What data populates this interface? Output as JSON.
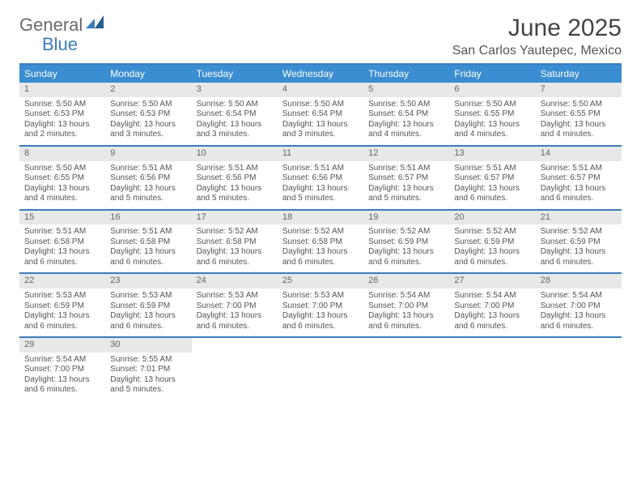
{
  "logo": {
    "general": "General",
    "blue": "Blue"
  },
  "title": {
    "month": "June 2025",
    "location": "San Carlos Yautepec, Mexico"
  },
  "colors": {
    "header_bg": "#3a8dd0",
    "rule": "#3a7dbf",
    "daynum_bg": "#e8e8e8",
    "text": "#555555"
  },
  "day_names": [
    "Sunday",
    "Monday",
    "Tuesday",
    "Wednesday",
    "Thursday",
    "Friday",
    "Saturday"
  ],
  "weeks": [
    [
      {
        "n": "1",
        "sr": "Sunrise: 5:50 AM",
        "ss": "Sunset: 6:53 PM",
        "dl": "Daylight: 13 hours and 2 minutes."
      },
      {
        "n": "2",
        "sr": "Sunrise: 5:50 AM",
        "ss": "Sunset: 6:53 PM",
        "dl": "Daylight: 13 hours and 3 minutes."
      },
      {
        "n": "3",
        "sr": "Sunrise: 5:50 AM",
        "ss": "Sunset: 6:54 PM",
        "dl": "Daylight: 13 hours and 3 minutes."
      },
      {
        "n": "4",
        "sr": "Sunrise: 5:50 AM",
        "ss": "Sunset: 6:54 PM",
        "dl": "Daylight: 13 hours and 3 minutes."
      },
      {
        "n": "5",
        "sr": "Sunrise: 5:50 AM",
        "ss": "Sunset: 6:54 PM",
        "dl": "Daylight: 13 hours and 4 minutes."
      },
      {
        "n": "6",
        "sr": "Sunrise: 5:50 AM",
        "ss": "Sunset: 6:55 PM",
        "dl": "Daylight: 13 hours and 4 minutes."
      },
      {
        "n": "7",
        "sr": "Sunrise: 5:50 AM",
        "ss": "Sunset: 6:55 PM",
        "dl": "Daylight: 13 hours and 4 minutes."
      }
    ],
    [
      {
        "n": "8",
        "sr": "Sunrise: 5:50 AM",
        "ss": "Sunset: 6:55 PM",
        "dl": "Daylight: 13 hours and 4 minutes."
      },
      {
        "n": "9",
        "sr": "Sunrise: 5:51 AM",
        "ss": "Sunset: 6:56 PM",
        "dl": "Daylight: 13 hours and 5 minutes."
      },
      {
        "n": "10",
        "sr": "Sunrise: 5:51 AM",
        "ss": "Sunset: 6:56 PM",
        "dl": "Daylight: 13 hours and 5 minutes."
      },
      {
        "n": "11",
        "sr": "Sunrise: 5:51 AM",
        "ss": "Sunset: 6:56 PM",
        "dl": "Daylight: 13 hours and 5 minutes."
      },
      {
        "n": "12",
        "sr": "Sunrise: 5:51 AM",
        "ss": "Sunset: 6:57 PM",
        "dl": "Daylight: 13 hours and 5 minutes."
      },
      {
        "n": "13",
        "sr": "Sunrise: 5:51 AM",
        "ss": "Sunset: 6:57 PM",
        "dl": "Daylight: 13 hours and 6 minutes."
      },
      {
        "n": "14",
        "sr": "Sunrise: 5:51 AM",
        "ss": "Sunset: 6:57 PM",
        "dl": "Daylight: 13 hours and 6 minutes."
      }
    ],
    [
      {
        "n": "15",
        "sr": "Sunrise: 5:51 AM",
        "ss": "Sunset: 6:58 PM",
        "dl": "Daylight: 13 hours and 6 minutes."
      },
      {
        "n": "16",
        "sr": "Sunrise: 5:51 AM",
        "ss": "Sunset: 6:58 PM",
        "dl": "Daylight: 13 hours and 6 minutes."
      },
      {
        "n": "17",
        "sr": "Sunrise: 5:52 AM",
        "ss": "Sunset: 6:58 PM",
        "dl": "Daylight: 13 hours and 6 minutes."
      },
      {
        "n": "18",
        "sr": "Sunrise: 5:52 AM",
        "ss": "Sunset: 6:58 PM",
        "dl": "Daylight: 13 hours and 6 minutes."
      },
      {
        "n": "19",
        "sr": "Sunrise: 5:52 AM",
        "ss": "Sunset: 6:59 PM",
        "dl": "Daylight: 13 hours and 6 minutes."
      },
      {
        "n": "20",
        "sr": "Sunrise: 5:52 AM",
        "ss": "Sunset: 6:59 PM",
        "dl": "Daylight: 13 hours and 6 minutes."
      },
      {
        "n": "21",
        "sr": "Sunrise: 5:52 AM",
        "ss": "Sunset: 6:59 PM",
        "dl": "Daylight: 13 hours and 6 minutes."
      }
    ],
    [
      {
        "n": "22",
        "sr": "Sunrise: 5:53 AM",
        "ss": "Sunset: 6:59 PM",
        "dl": "Daylight: 13 hours and 6 minutes."
      },
      {
        "n": "23",
        "sr": "Sunrise: 5:53 AM",
        "ss": "Sunset: 6:59 PM",
        "dl": "Daylight: 13 hours and 6 minutes."
      },
      {
        "n": "24",
        "sr": "Sunrise: 5:53 AM",
        "ss": "Sunset: 7:00 PM",
        "dl": "Daylight: 13 hours and 6 minutes."
      },
      {
        "n": "25",
        "sr": "Sunrise: 5:53 AM",
        "ss": "Sunset: 7:00 PM",
        "dl": "Daylight: 13 hours and 6 minutes."
      },
      {
        "n": "26",
        "sr": "Sunrise: 5:54 AM",
        "ss": "Sunset: 7:00 PM",
        "dl": "Daylight: 13 hours and 6 minutes."
      },
      {
        "n": "27",
        "sr": "Sunrise: 5:54 AM",
        "ss": "Sunset: 7:00 PM",
        "dl": "Daylight: 13 hours and 6 minutes."
      },
      {
        "n": "28",
        "sr": "Sunrise: 5:54 AM",
        "ss": "Sunset: 7:00 PM",
        "dl": "Daylight: 13 hours and 6 minutes."
      }
    ],
    [
      {
        "n": "29",
        "sr": "Sunrise: 5:54 AM",
        "ss": "Sunset: 7:00 PM",
        "dl": "Daylight: 13 hours and 6 minutes."
      },
      {
        "n": "30",
        "sr": "Sunrise: 5:55 AM",
        "ss": "Sunset: 7:01 PM",
        "dl": "Daylight: 13 hours and 5 minutes."
      },
      null,
      null,
      null,
      null,
      null
    ]
  ]
}
